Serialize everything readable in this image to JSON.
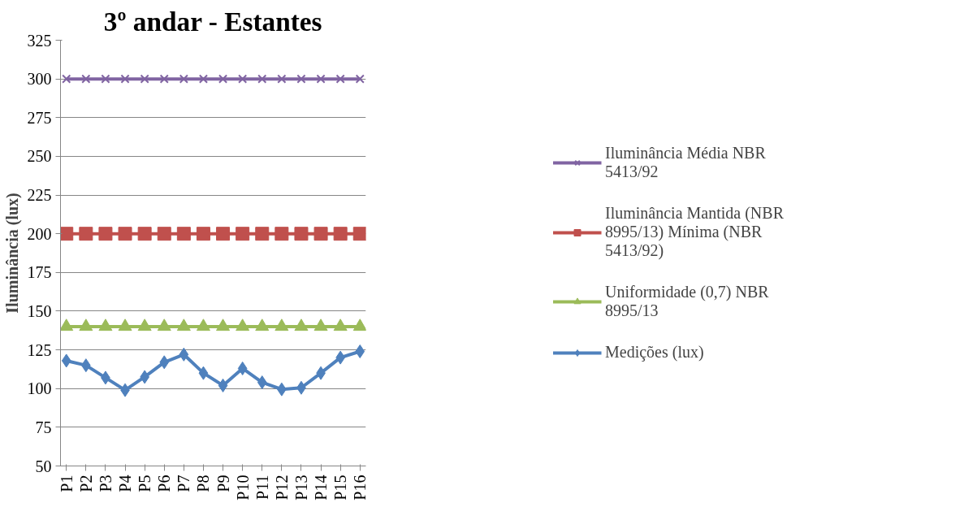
{
  "chart_data": {
    "type": "line",
    "title": "3º andar - Estantes",
    "ylabel": "Iluminância (lux)",
    "categories": [
      "P1",
      "P2",
      "P3",
      "P4",
      "P5",
      "P6",
      "P7",
      "P8",
      "P9",
      "P10",
      "P11",
      "P12",
      "P13",
      "P14",
      "P15",
      "P16"
    ],
    "series": [
      {
        "name": "Iluminância Média NBR 5413/92",
        "color": "#8064a2",
        "marker": "cross",
        "values": [
          300,
          300,
          300,
          300,
          300,
          300,
          300,
          300,
          300,
          300,
          300,
          300,
          300,
          300,
          300,
          300
        ]
      },
      {
        "name": "Iluminância Mantida (NBR 8995/13) Mínima (NBR 5413/92)",
        "color": "#c0504d",
        "marker": "square",
        "values": [
          200,
          200,
          200,
          200,
          200,
          200,
          200,
          200,
          200,
          200,
          200,
          200,
          200,
          200,
          200,
          200
        ]
      },
      {
        "name": "Uniformidade (0,7) NBR 8995/13",
        "color": "#9bbb59",
        "marker": "triangle",
        "values": [
          140,
          140,
          140,
          140,
          140,
          140,
          140,
          140,
          140,
          140,
          140,
          140,
          140,
          140,
          140,
          140
        ]
      },
      {
        "name": "Medições (lux)",
        "color": "#4f81bd",
        "marker": "diamond",
        "values": [
          118,
          115,
          107,
          99,
          107.5,
          117,
          122,
          110,
          102,
          113,
          104,
          99.5,
          100.5,
          110,
          120,
          124
        ]
      }
    ],
    "ylim": [
      50,
      325
    ],
    "yticks": [
      50,
      75,
      100,
      125,
      150,
      175,
      200,
      225,
      250,
      275,
      300,
      325
    ],
    "grid": "y",
    "legend": "right",
    "line_style": "solid"
  }
}
